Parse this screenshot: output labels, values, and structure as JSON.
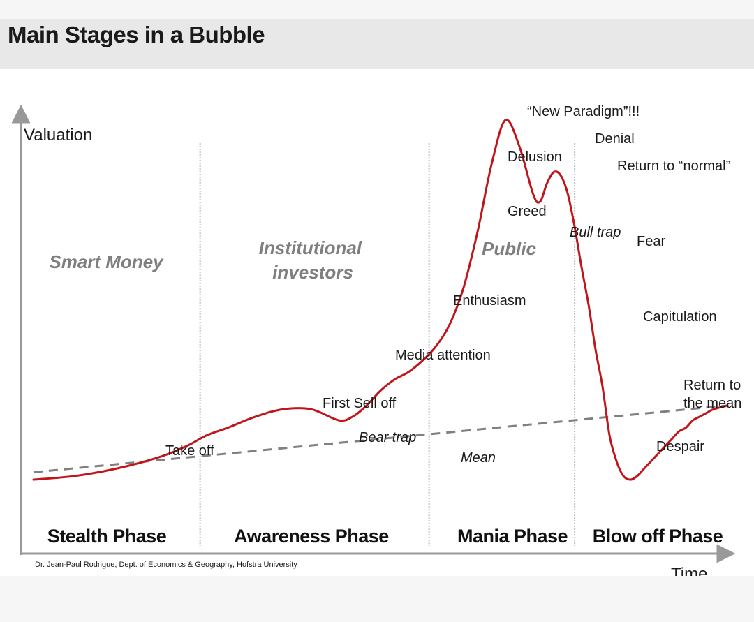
{
  "title": "Main Stages in a Bubble",
  "chart_data": {
    "type": "line",
    "title": "Main Stages in a Bubble",
    "xlabel": "Time",
    "ylabel": "Valuation",
    "axis_ticks": "none",
    "grid": false,
    "colors": {
      "curve": "#c0161b",
      "mean": "#808080",
      "divider": "#777777",
      "group_text": "#7f7f7f"
    },
    "series": [
      {
        "name": "",
        "style": "solid-red",
        "x": [
          0,
          6,
          12,
          18,
          22,
          25,
          28,
          32,
          36,
          40,
          44,
          46,
          48,
          50,
          52,
          54,
          56,
          58,
          60,
          62,
          64,
          66,
          68,
          70,
          72,
          73,
          74,
          75,
          76,
          77,
          78,
          79,
          80,
          81,
          82,
          83,
          84,
          85,
          86,
          87,
          88,
          89,
          90,
          91,
          92,
          93,
          94,
          95,
          96,
          97,
          98,
          100
        ],
        "y": [
          3,
          4,
          6,
          9,
          12,
          15,
          17,
          20,
          22,
          22,
          19,
          20,
          23,
          27,
          30,
          32,
          35,
          39,
          45,
          55,
          70,
          88,
          100,
          93,
          80,
          78,
          83,
          86,
          85,
          80,
          71,
          60,
          50,
          38,
          28,
          15,
          8,
          4,
          3,
          4,
          6,
          8,
          10,
          12,
          14,
          16,
          17,
          19,
          20,
          21,
          22,
          23
        ]
      },
      {
        "name": "Mean",
        "style": "dashed-grey",
        "x": [
          0,
          100
        ],
        "y": [
          5,
          23
        ]
      }
    ],
    "phases": [
      "Stealth Phase",
      "Awareness Phase",
      "Mania Phase",
      "Blow off Phase"
    ],
    "phase_boundaries_x": [
      24,
      57,
      78
    ],
    "groups": [
      "Smart Money",
      "Institutional investors",
      "Public"
    ],
    "annotations": [
      "Take off",
      "First Sell off",
      "Bear trap",
      "Mean",
      "Media attention",
      "Enthusiasm",
      "Greed",
      "Delusion",
      "“New Paradigm”!!!",
      "Denial",
      "Return to “normal”",
      "Bull trap",
      "Fear",
      "Capitulation",
      "Despair",
      "Return to the mean"
    ],
    "source": "Dr. Jean-Paul Rodrigue, Dept. of Economics & Geography, Hofstra University"
  }
}
